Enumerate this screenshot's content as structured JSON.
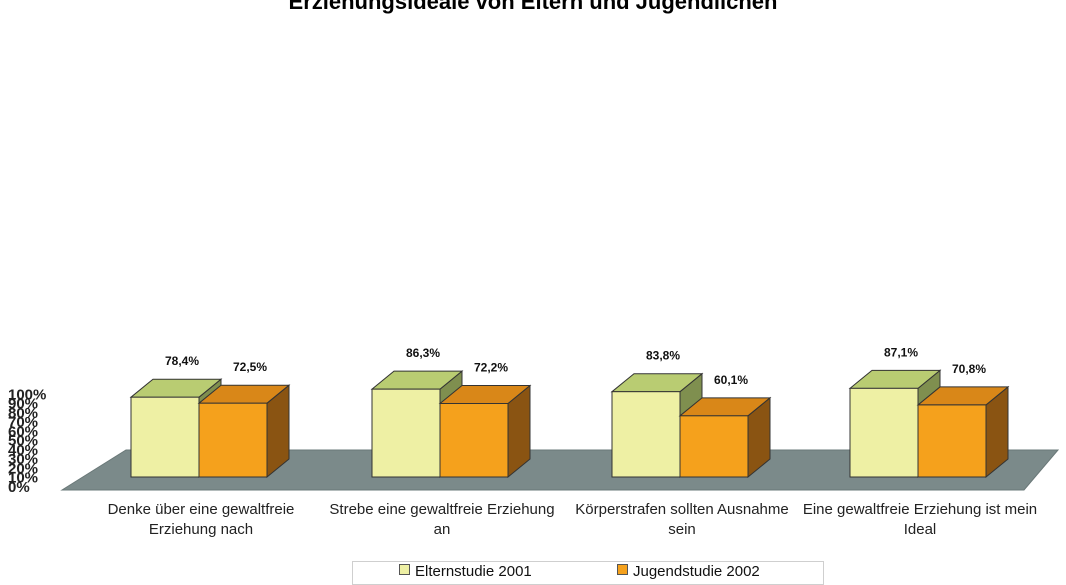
{
  "chart_data": {
    "type": "bar",
    "title": "Erziehungsideale von Eltern und Jugendlichen",
    "categories": [
      "Denke über eine gewaltfreie Erziehung nach",
      "Strebe eine gewaltfreie Erziehung an",
      "Körperstrafen sollten Ausnahme sein",
      "Eine gewaltfreie Erziehung ist mein Ideal"
    ],
    "category_lines": [
      [
        "Denke über eine gewaltfreie",
        "Erziehung nach"
      ],
      [
        "Strebe eine gewaltfreie Erziehung",
        "an"
      ],
      [
        "Körperstrafen sollten Ausnahme",
        "sein"
      ],
      [
        "Eine gewaltfreie Erziehung ist mein",
        "Ideal"
      ]
    ],
    "series": [
      {
        "name": "Elternstudie 2001",
        "color": "#eef0a4",
        "values": [
          78.4,
          86.3,
          83.8,
          87.1
        ],
        "labels": [
          "78,4%",
          "86,3%",
          "83,8%",
          "87,1%"
        ]
      },
      {
        "name": "Jugendstudie 2002",
        "color": "#f5a11c",
        "values": [
          72.5,
          72.2,
          60.1,
          70.8
        ],
        "labels": [
          "72,5%",
          "72,2%",
          "60,1%",
          "70,8%"
        ]
      }
    ],
    "y_ticks": [
      "0%",
      "10%",
      "20%",
      "30%",
      "40%",
      "50%",
      "60%",
      "70%",
      "80%",
      "90%",
      "100%"
    ],
    "ylim": [
      0,
      100
    ],
    "xlabel": "",
    "ylabel": "",
    "legend_position": "bottom",
    "style": "3d-column",
    "grid": false
  }
}
